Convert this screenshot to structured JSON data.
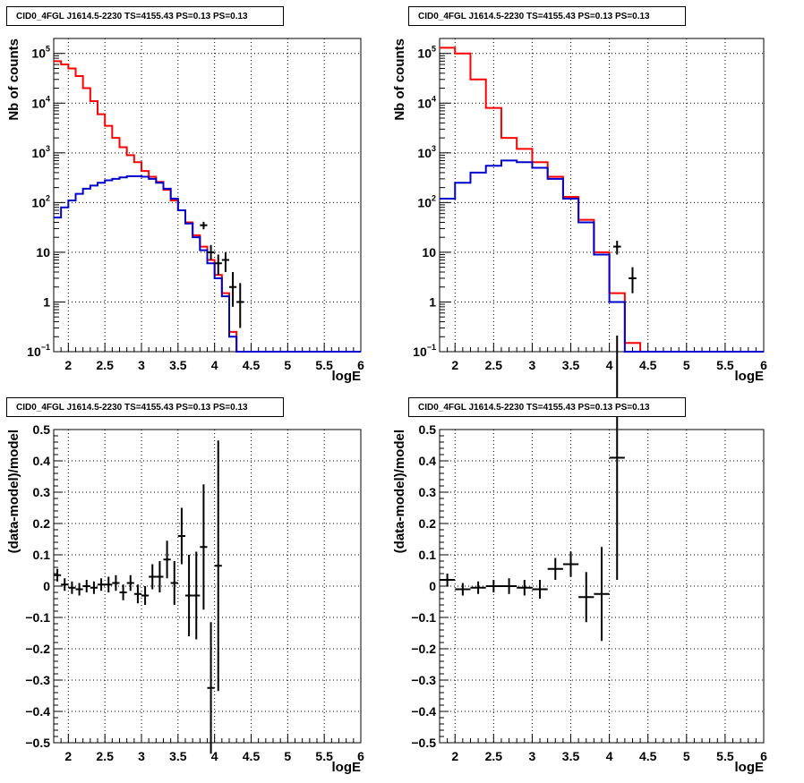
{
  "colors": {
    "model_total": "#ff0000",
    "model_component": "#0000cc",
    "data": "#000000",
    "grid": "#000000"
  },
  "chart_data": [
    {
      "type": "line",
      "subtype": "step-histogram-log",
      "title": "CID0_4FGL J1614.5-2230 TS=4155.43 PS=0.13 PS=0.13",
      "xlabel": "logE",
      "ylabel": "Nb of counts",
      "xlim": [
        1.8,
        6.0
      ],
      "ylim": [
        0.1,
        200000
      ],
      "yscale": "log",
      "grid": true,
      "xticks": [
        "2",
        "2.5",
        "3",
        "3.5",
        "4",
        "4.5",
        "5",
        "5.5",
        "6"
      ],
      "yticks": [
        "10^-1",
        "1",
        "10",
        "10^2",
        "10^3",
        "10^4",
        "10^5"
      ],
      "bin_edges": [
        1.8,
        1.9,
        2.0,
        2.1,
        2.2,
        2.3,
        2.4,
        2.5,
        2.6,
        2.7,
        2.8,
        2.9,
        3.0,
        3.1,
        3.2,
        3.3,
        3.4,
        3.5,
        3.6,
        3.7,
        3.8,
        3.9,
        4.0,
        4.1,
        4.2,
        4.3,
        4.4,
        4.5,
        4.6,
        4.7,
        4.8,
        4.9,
        5.0,
        5.1,
        5.2,
        5.3,
        5.4,
        5.5,
        5.6,
        5.7,
        5.8,
        5.9,
        6.0
      ],
      "series": [
        {
          "values": [
            70000,
            60000,
            50000,
            35000,
            20000,
            11000,
            6000,
            3500,
            2000,
            1300,
            900,
            650,
            430,
            330,
            260,
            180,
            110,
            70,
            40,
            22,
            13,
            7,
            3.5,
            1.5,
            0.25,
            0.1,
            0.1,
            0.1,
            0.1,
            0.1,
            0.1,
            0.1,
            0.1,
            0.1,
            0.1,
            0.1,
            0.1,
            0.1,
            0.1,
            0.1,
            0.1,
            0.1
          ]
        },
        {
          "values": [
            50,
            80,
            110,
            150,
            190,
            220,
            250,
            280,
            300,
            320,
            340,
            340,
            330,
            300,
            250,
            190,
            120,
            70,
            38,
            20,
            11,
            6,
            3,
            1.3,
            0.2,
            0.1,
            0.1,
            0.1,
            0.1,
            0.1,
            0.1,
            0.1,
            0.1,
            0.1,
            0.1,
            0.1,
            0.1,
            0.1,
            0.1,
            0.1,
            0.1,
            0.1
          ]
        }
      ],
      "points": [
        {
          "x": 3.85,
          "y": 35,
          "yerr": [
            29,
            41
          ]
        },
        {
          "x": 3.95,
          "y": 10,
          "yerr": [
            7,
            14
          ]
        },
        {
          "x": 4.05,
          "y": 6,
          "yerr": [
            3.5,
            9
          ]
        },
        {
          "x": 4.15,
          "y": 7,
          "yerr": [
            4,
            10
          ]
        },
        {
          "x": 4.25,
          "y": 2,
          "yerr": [
            0.8,
            4
          ]
        },
        {
          "x": 4.35,
          "y": 1,
          "yerr": [
            0.3,
            2.4
          ]
        }
      ]
    },
    {
      "type": "line",
      "subtype": "step-histogram-log",
      "title": "CID0_4FGL J1614.5-2230 TS=4155.43 PS=0.13 PS=0.13",
      "xlabel": "logE",
      "ylabel": "Nb of counts",
      "xlim": [
        1.8,
        6.0
      ],
      "ylim": [
        0.1,
        200000
      ],
      "yscale": "log",
      "grid": true,
      "xticks": [
        "2",
        "2.5",
        "3",
        "3.5",
        "4",
        "4.5",
        "5",
        "5.5",
        "6"
      ],
      "yticks": [
        "10^-1",
        "1",
        "10",
        "10^2",
        "10^3",
        "10^4",
        "10^5"
      ],
      "bin_edges": [
        1.8,
        2.0,
        2.2,
        2.4,
        2.6,
        2.8,
        3.0,
        3.2,
        3.4,
        3.6,
        3.8,
        4.0,
        4.2,
        4.4,
        4.6,
        4.8,
        5.0,
        5.2,
        5.4,
        5.6,
        5.8,
        6.0
      ],
      "series": [
        {
          "values": [
            130000,
            100000,
            30000,
            8000,
            2000,
            1200,
            650,
            330,
            130,
            45,
            10,
            1.5,
            0.15,
            0.1,
            0.1,
            0.1,
            0.1,
            0.1,
            0.1,
            0.1,
            0.1
          ]
        },
        {
          "values": [
            120,
            250,
            400,
            550,
            700,
            650,
            500,
            300,
            120,
            40,
            9,
            1.0,
            0.1,
            0.1,
            0.1,
            0.1,
            0.1,
            0.1,
            0.1,
            0.1,
            0.1
          ]
        }
      ],
      "points": [
        {
          "x": 4.1,
          "y": 13,
          "yerr": [
            9,
            17
          ]
        },
        {
          "x": 4.3,
          "y": 3,
          "yerr": [
            1.5,
            5
          ]
        }
      ]
    },
    {
      "type": "scatter",
      "subtype": "residuals-errorbars",
      "title": "CID0_4FGL J1614.5-2230 TS=4155.43 PS=0.13 PS=0.13",
      "xlabel": "logE",
      "ylabel": "(data-model)/model",
      "xlim": [
        1.8,
        6.0
      ],
      "ylim": [
        -0.5,
        0.5
      ],
      "grid": true,
      "xticks": [
        "2",
        "2.5",
        "3",
        "3.5",
        "4",
        "4.5",
        "5",
        "5.5",
        "6"
      ],
      "yticks": [
        "-0.5",
        "-0.4",
        "-0.3",
        "-0.2",
        "-0.1",
        "0",
        "0.1",
        "0.2",
        "0.3",
        "0.4",
        "0.5"
      ],
      "points": [
        {
          "x": 1.85,
          "y": 0.035,
          "yerr": 0.02,
          "xerr": 0.05
        },
        {
          "x": 1.95,
          "y": 0.005,
          "yerr": 0.02,
          "xerr": 0.05
        },
        {
          "x": 2.05,
          "y": -0.005,
          "yerr": 0.02,
          "xerr": 0.05
        },
        {
          "x": 2.15,
          "y": -0.01,
          "yerr": 0.02,
          "xerr": 0.05
        },
        {
          "x": 2.25,
          "y": 0.0,
          "yerr": 0.02,
          "xerr": 0.05
        },
        {
          "x": 2.35,
          "y": -0.005,
          "yerr": 0.02,
          "xerr": 0.05
        },
        {
          "x": 2.45,
          "y": 0.005,
          "yerr": 0.02,
          "xerr": 0.05
        },
        {
          "x": 2.55,
          "y": 0.005,
          "yerr": 0.025,
          "xerr": 0.05
        },
        {
          "x": 2.65,
          "y": 0.01,
          "yerr": 0.025,
          "xerr": 0.05
        },
        {
          "x": 2.75,
          "y": -0.02,
          "yerr": 0.025,
          "xerr": 0.05
        },
        {
          "x": 2.85,
          "y": 0.01,
          "yerr": 0.025,
          "xerr": 0.05
        },
        {
          "x": 2.95,
          "y": -0.025,
          "yerr": 0.03,
          "xerr": 0.05
        },
        {
          "x": 3.05,
          "y": -0.03,
          "yerr": 0.03,
          "xerr": 0.05
        },
        {
          "x": 3.15,
          "y": 0.03,
          "yerr": 0.04,
          "xerr": 0.05
        },
        {
          "x": 3.25,
          "y": 0.03,
          "yerr": 0.05,
          "xerr": 0.05
        },
        {
          "x": 3.35,
          "y": 0.085,
          "yerr": 0.06,
          "xerr": 0.05
        },
        {
          "x": 3.45,
          "y": 0.01,
          "yerr": 0.07,
          "xerr": 0.05
        },
        {
          "x": 3.55,
          "y": 0.16,
          "yerr": 0.09,
          "xerr": 0.05
        },
        {
          "x": 3.65,
          "y": -0.03,
          "yerr": 0.13,
          "xerr": 0.05
        },
        {
          "x": 3.75,
          "y": -0.03,
          "yerr": 0.14,
          "xerr": 0.05
        },
        {
          "x": 3.85,
          "y": 0.125,
          "yerr": 0.2,
          "xerr": 0.05
        },
        {
          "x": 3.95,
          "y": -0.325,
          "yerr": 0.21,
          "xerr": 0.05
        },
        {
          "x": 4.05,
          "y": 0.065,
          "yerr": 0.4,
          "xerr": 0.05
        }
      ]
    },
    {
      "type": "scatter",
      "subtype": "residuals-errorbars",
      "title": "CID0_4FGL J1614.5-2230 TS=4155.43 PS=0.13 PS=0.13",
      "xlabel": "logE",
      "ylabel": "(data-model)/model",
      "xlim": [
        1.8,
        6.0
      ],
      "ylim": [
        -0.5,
        0.5
      ],
      "grid": true,
      "xticks": [
        "2",
        "2.5",
        "3",
        "3.5",
        "4",
        "4.5",
        "5",
        "5.5",
        "6"
      ],
      "yticks": [
        "-0.5",
        "-0.4",
        "-0.3",
        "-0.2",
        "-0.1",
        "0",
        "0.1",
        "0.2",
        "0.3",
        "0.4",
        "0.5"
      ],
      "points": [
        {
          "x": 1.9,
          "y": 0.02,
          "yerr": 0.02,
          "xerr": 0.1
        },
        {
          "x": 2.1,
          "y": -0.01,
          "yerr": 0.02,
          "xerr": 0.1
        },
        {
          "x": 2.3,
          "y": -0.005,
          "yerr": 0.02,
          "xerr": 0.1
        },
        {
          "x": 2.5,
          "y": 0.0,
          "yerr": 0.02,
          "xerr": 0.1
        },
        {
          "x": 2.7,
          "y": 0.0,
          "yerr": 0.025,
          "xerr": 0.1
        },
        {
          "x": 2.9,
          "y": -0.005,
          "yerr": 0.025,
          "xerr": 0.1
        },
        {
          "x": 3.1,
          "y": -0.01,
          "yerr": 0.03,
          "xerr": 0.1
        },
        {
          "x": 3.3,
          "y": 0.055,
          "yerr": 0.035,
          "xerr": 0.1
        },
        {
          "x": 3.5,
          "y": 0.07,
          "yerr": 0.04,
          "xerr": 0.1
        },
        {
          "x": 3.7,
          "y": -0.035,
          "yerr": 0.08,
          "xerr": 0.1
        },
        {
          "x": 3.9,
          "y": -0.025,
          "yerr": 0.15,
          "xerr": 0.1
        },
        {
          "x": 4.1,
          "y": 0.41,
          "yerr": 0.39,
          "xerr": 0.1
        }
      ]
    }
  ]
}
